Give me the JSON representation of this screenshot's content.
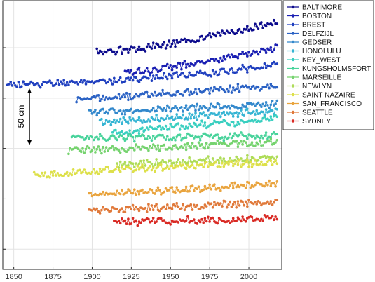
{
  "chart_data": {
    "type": "scatter",
    "title": "",
    "xlabel": "",
    "ylabel": "",
    "xlim": [
      1843,
      2021
    ],
    "xticks": [
      1850,
      1875,
      1900,
      1925,
      1950,
      1975,
      2000
    ],
    "xtick_labels": [
      "1850",
      "1875",
      "1900",
      "1925",
      "1950",
      "1975",
      "2000"
    ],
    "ylim": [
      0,
      400
    ],
    "ytick_values": [
      30,
      105,
      180,
      255,
      330
    ],
    "y_units": "cm, stations offset vertically",
    "grid": true,
    "legend_position": "top-right outside plot",
    "scale_bar": {
      "label": "50 cm",
      "length": 50
    },
    "series": [
      {
        "name": "BALTIMORE",
        "color": "#0c0b8d",
        "x": [
          1903,
          1925,
          1950,
          1975,
          2000,
          2018
        ],
        "y": [
          323,
          327,
          336,
          347,
          358,
          368
        ]
      },
      {
        "name": "BOSTON",
        "color": "#1a1fb3",
        "x": [
          1921,
          1940,
          1960,
          1980,
          2000,
          2018
        ],
        "y": [
          293,
          298,
          305,
          313,
          321,
          330
        ]
      },
      {
        "name": "BREST",
        "color": "#1f3fbf",
        "x": [
          1846,
          1860,
          1880,
          1900,
          1920,
          1940,
          1960,
          1980,
          2000,
          2018
        ],
        "y": [
          276,
          275,
          278,
          279,
          282,
          286,
          290,
          294,
          299,
          305
        ]
      },
      {
        "name": "DELFZIJL",
        "color": "#2b62c4",
        "x": [
          1890,
          1910,
          1930,
          1950,
          1970,
          1990,
          2018
        ],
        "y": [
          253,
          256,
          260,
          263,
          265,
          269,
          273
        ]
      },
      {
        "name": "GEDSER",
        "color": "#3388cc",
        "x": [
          1898,
          1920,
          1940,
          1960,
          1980,
          2000,
          2018
        ],
        "y": [
          234,
          236,
          238,
          240,
          242,
          244,
          247
        ]
      },
      {
        "name": "HONOLULU",
        "color": "#35b4d3",
        "x": [
          1905,
          1925,
          1945,
          1965,
          1985,
          2005,
          2018
        ],
        "y": [
          219,
          222,
          225,
          228,
          231,
          234,
          237
        ]
      },
      {
        "name": "KEY_WEST",
        "color": "#39cfc0",
        "x": [
          1913,
          1930,
          1950,
          1970,
          1990,
          2010,
          2018
        ],
        "y": [
          204,
          207,
          211,
          215,
          219,
          224,
          226
        ]
      },
      {
        "name": "KUNGSHOLMSFORT",
        "color": "#48d39b",
        "x": [
          1887,
          1910,
          1930,
          1950,
          1970,
          1990,
          2018
        ],
        "y": [
          196,
          196,
          196,
          196,
          197,
          198,
          199
        ]
      },
      {
        "name": "MARSEILLE",
        "color": "#76d36f",
        "x": [
          1885,
          1905,
          1925,
          1945,
          1965,
          1985,
          2018
        ],
        "y": [
          176,
          178,
          180,
          182,
          184,
          186,
          189
        ]
      },
      {
        "name": "NEWLYN",
        "color": "#aedc58",
        "x": [
          1916,
          1935,
          1955,
          1975,
          1995,
          2018
        ],
        "y": [
          156,
          158,
          160,
          162,
          164,
          166
        ]
      },
      {
        "name": "SAINT-NAZAIRE",
        "color": "#dde04a",
        "x": [
          1863,
          1880,
          1900,
          1920,
          1940,
          1960,
          1980,
          2000,
          2018
        ],
        "y": [
          141,
          142,
          146,
          149,
          151,
          154,
          156,
          158,
          160
        ]
      },
      {
        "name": "SAN_FRANCISCO",
        "color": "#e9a43e",
        "x": [
          1898,
          1920,
          1940,
          1960,
          1980,
          2000,
          2018
        ],
        "y": [
          112,
          114,
          117,
          120,
          122,
          125,
          127
        ]
      },
      {
        "name": "SEATTLE",
        "color": "#e0793a",
        "x": [
          1898,
          1920,
          1940,
          1960,
          1980,
          2000,
          2018
        ],
        "y": [
          88,
          90,
          92,
          94,
          96,
          98,
          100
        ]
      },
      {
        "name": "SYDNEY",
        "color": "#d92a24",
        "x": [
          1914,
          1930,
          1950,
          1970,
          1990,
          2010,
          2018
        ],
        "y": [
          70,
          71,
          72,
          73,
          74,
          76,
          77
        ]
      }
    ]
  }
}
